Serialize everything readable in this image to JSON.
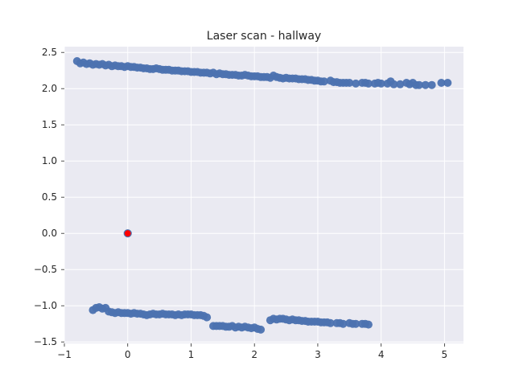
{
  "chart_data": {
    "type": "scatter",
    "title": "Laser scan - hallway",
    "xlabel": "",
    "ylabel": "",
    "xlim": [
      -1.0,
      5.3
    ],
    "ylim": [
      -1.52,
      2.58
    ],
    "xticks": [
      -1,
      0,
      1,
      2,
      3,
      4,
      5
    ],
    "yticks": [
      -1.5,
      -1.0,
      -0.5,
      0.0,
      0.5,
      1.0,
      1.5,
      2.0,
      2.5
    ],
    "ytick_labels": [
      "−1.5",
      "−1.0",
      "−0.5",
      "0.0",
      "0.5",
      "1.0",
      "1.5",
      "2.0",
      "2.5"
    ],
    "xtick_labels": [
      "−1",
      "0",
      "1",
      "2",
      "3",
      "4",
      "5"
    ],
    "grid": true,
    "background_color": "#eaeaf2",
    "series": [
      {
        "color": "#4c72b0",
        "points": [
          [
            -0.8,
            2.38
          ],
          [
            -0.75,
            2.35
          ],
          [
            -0.7,
            2.36
          ],
          [
            -0.65,
            2.34
          ],
          [
            -0.6,
            2.35
          ],
          [
            -0.55,
            2.33
          ],
          [
            -0.5,
            2.34
          ],
          [
            -0.45,
            2.33
          ],
          [
            -0.4,
            2.34
          ],
          [
            -0.35,
            2.32
          ],
          [
            -0.3,
            2.33
          ],
          [
            -0.25,
            2.31
          ],
          [
            -0.2,
            2.32
          ],
          [
            -0.15,
            2.31
          ],
          [
            -0.1,
            2.31
          ],
          [
            -0.05,
            2.3
          ],
          [
            0.0,
            2.31
          ],
          [
            0.05,
            2.3
          ],
          [
            0.1,
            2.3
          ],
          [
            0.15,
            2.29
          ],
          [
            0.2,
            2.29
          ],
          [
            0.25,
            2.28
          ],
          [
            0.3,
            2.28
          ],
          [
            0.35,
            2.27
          ],
          [
            0.4,
            2.27
          ],
          [
            0.45,
            2.28
          ],
          [
            0.5,
            2.27
          ],
          [
            0.55,
            2.26
          ],
          [
            0.6,
            2.26
          ],
          [
            0.65,
            2.26
          ],
          [
            0.7,
            2.25
          ],
          [
            0.75,
            2.25
          ],
          [
            0.8,
            2.25
          ],
          [
            0.85,
            2.24
          ],
          [
            0.9,
            2.24
          ],
          [
            0.95,
            2.24
          ],
          [
            1.0,
            2.23
          ],
          [
            1.05,
            2.23
          ],
          [
            1.1,
            2.23
          ],
          [
            1.15,
            2.22
          ],
          [
            1.2,
            2.22
          ],
          [
            1.25,
            2.22
          ],
          [
            1.3,
            2.21
          ],
          [
            1.35,
            2.22
          ],
          [
            1.4,
            2.2
          ],
          [
            1.45,
            2.21
          ],
          [
            1.5,
            2.2
          ],
          [
            1.55,
            2.2
          ],
          [
            1.6,
            2.19
          ],
          [
            1.65,
            2.19
          ],
          [
            1.7,
            2.19
          ],
          [
            1.75,
            2.18
          ],
          [
            1.8,
            2.18
          ],
          [
            1.85,
            2.19
          ],
          [
            1.9,
            2.18
          ],
          [
            1.95,
            2.17
          ],
          [
            2.0,
            2.17
          ],
          [
            2.05,
            2.17
          ],
          [
            2.1,
            2.16
          ],
          [
            2.15,
            2.16
          ],
          [
            2.2,
            2.16
          ],
          [
            2.25,
            2.15
          ],
          [
            2.3,
            2.18
          ],
          [
            2.35,
            2.16
          ],
          [
            2.4,
            2.15
          ],
          [
            2.45,
            2.14
          ],
          [
            2.5,
            2.15
          ],
          [
            2.55,
            2.14
          ],
          [
            2.6,
            2.14
          ],
          [
            2.65,
            2.14
          ],
          [
            2.7,
            2.13
          ],
          [
            2.75,
            2.13
          ],
          [
            2.8,
            2.13
          ],
          [
            2.85,
            2.12
          ],
          [
            2.9,
            2.12
          ],
          [
            2.95,
            2.11
          ],
          [
            3.0,
            2.11
          ],
          [
            3.05,
            2.1
          ],
          [
            3.1,
            2.1
          ],
          [
            3.2,
            2.11
          ],
          [
            3.25,
            2.09
          ],
          [
            3.3,
            2.09
          ],
          [
            3.35,
            2.08
          ],
          [
            3.4,
            2.08
          ],
          [
            3.45,
            2.08
          ],
          [
            3.5,
            2.08
          ],
          [
            3.6,
            2.07
          ],
          [
            3.7,
            2.08
          ],
          [
            3.75,
            2.08
          ],
          [
            3.8,
            2.07
          ],
          [
            3.9,
            2.07
          ],
          [
            3.95,
            2.08
          ],
          [
            4.0,
            2.07
          ],
          [
            4.1,
            2.07
          ],
          [
            4.15,
            2.1
          ],
          [
            4.2,
            2.06
          ],
          [
            4.3,
            2.06
          ],
          [
            4.4,
            2.08
          ],
          [
            4.45,
            2.06
          ],
          [
            4.5,
            2.08
          ],
          [
            4.55,
            2.05
          ],
          [
            4.6,
            2.05
          ],
          [
            4.7,
            2.05
          ],
          [
            4.8,
            2.05
          ],
          [
            4.95,
            2.08
          ],
          [
            5.05,
            2.08
          ],
          [
            -0.55,
            -1.06
          ],
          [
            -0.5,
            -1.03
          ],
          [
            -0.45,
            -1.02
          ],
          [
            -0.4,
            -1.04
          ],
          [
            -0.35,
            -1.03
          ],
          [
            -0.3,
            -1.08
          ],
          [
            -0.25,
            -1.09
          ],
          [
            -0.2,
            -1.1
          ],
          [
            -0.15,
            -1.09
          ],
          [
            -0.1,
            -1.1
          ],
          [
            -0.05,
            -1.1
          ],
          [
            0.0,
            -1.1
          ],
          [
            0.05,
            -1.11
          ],
          [
            0.1,
            -1.1
          ],
          [
            0.15,
            -1.11
          ],
          [
            0.2,
            -1.11
          ],
          [
            0.25,
            -1.12
          ],
          [
            0.3,
            -1.13
          ],
          [
            0.35,
            -1.12
          ],
          [
            0.4,
            -1.11
          ],
          [
            0.45,
            -1.12
          ],
          [
            0.5,
            -1.12
          ],
          [
            0.55,
            -1.11
          ],
          [
            0.6,
            -1.12
          ],
          [
            0.65,
            -1.12
          ],
          [
            0.7,
            -1.12
          ],
          [
            0.75,
            -1.13
          ],
          [
            0.8,
            -1.12
          ],
          [
            0.85,
            -1.13
          ],
          [
            0.9,
            -1.12
          ],
          [
            0.95,
            -1.12
          ],
          [
            1.0,
            -1.12
          ],
          [
            1.05,
            -1.13
          ],
          [
            1.1,
            -1.13
          ],
          [
            1.15,
            -1.13
          ],
          [
            1.2,
            -1.14
          ],
          [
            1.25,
            -1.16
          ],
          [
            1.35,
            -1.28
          ],
          [
            1.4,
            -1.28
          ],
          [
            1.45,
            -1.28
          ],
          [
            1.5,
            -1.28
          ],
          [
            1.55,
            -1.29
          ],
          [
            1.6,
            -1.29
          ],
          [
            1.65,
            -1.28
          ],
          [
            1.7,
            -1.3
          ],
          [
            1.75,
            -1.29
          ],
          [
            1.8,
            -1.3
          ],
          [
            1.85,
            -1.29
          ],
          [
            1.9,
            -1.3
          ],
          [
            1.95,
            -1.31
          ],
          [
            2.0,
            -1.3
          ],
          [
            2.05,
            -1.32
          ],
          [
            2.1,
            -1.33
          ],
          [
            2.25,
            -1.2
          ],
          [
            2.3,
            -1.18
          ],
          [
            2.35,
            -1.19
          ],
          [
            2.4,
            -1.18
          ],
          [
            2.45,
            -1.18
          ],
          [
            2.5,
            -1.19
          ],
          [
            2.55,
            -1.2
          ],
          [
            2.6,
            -1.19
          ],
          [
            2.65,
            -1.2
          ],
          [
            2.7,
            -1.2
          ],
          [
            2.75,
            -1.21
          ],
          [
            2.8,
            -1.21
          ],
          [
            2.85,
            -1.22
          ],
          [
            2.9,
            -1.22
          ],
          [
            2.95,
            -1.22
          ],
          [
            3.0,
            -1.22
          ],
          [
            3.05,
            -1.23
          ],
          [
            3.1,
            -1.23
          ],
          [
            3.15,
            -1.23
          ],
          [
            3.2,
            -1.24
          ],
          [
            3.3,
            -1.24
          ],
          [
            3.35,
            -1.24
          ],
          [
            3.4,
            -1.25
          ],
          [
            3.5,
            -1.24
          ],
          [
            3.55,
            -1.25
          ],
          [
            3.6,
            -1.25
          ],
          [
            3.7,
            -1.25
          ],
          [
            3.75,
            -1.25
          ],
          [
            3.8,
            -1.26
          ]
        ]
      },
      {
        "color": "#ff0000",
        "edge_color": "#4c72b0",
        "points": [
          [
            0.0,
            0.0
          ]
        ]
      }
    ]
  }
}
